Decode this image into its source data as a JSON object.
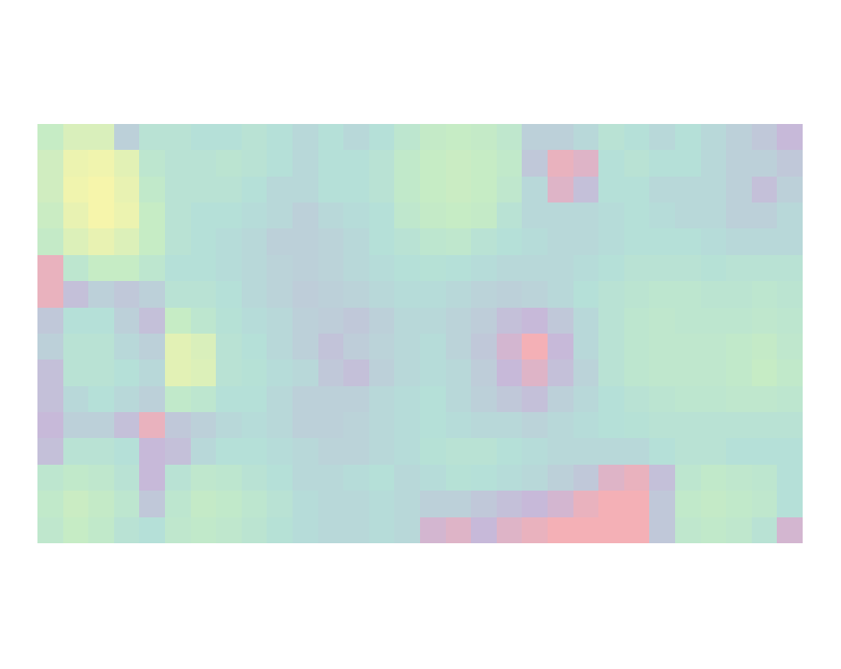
{
  "chart_data": {
    "type": "heatmap",
    "cells": [
      [
        70,
        80,
        80,
        40,
        55,
        55,
        50,
        50,
        55,
        50,
        45,
        50,
        45,
        50,
        60,
        68,
        70,
        68,
        62,
        40,
        40,
        45,
        55,
        50,
        45,
        50,
        45,
        40,
        35,
        25
      ],
      [
        75,
        90,
        92,
        85,
        60,
        55,
        55,
        58,
        55,
        50,
        45,
        50,
        50,
        55,
        65,
        70,
        72,
        70,
        65,
        35,
        10,
        15,
        50,
        55,
        50,
        50,
        45,
        40,
        40,
        35
      ],
      [
        75,
        92,
        95,
        88,
        65,
        55,
        55,
        55,
        50,
        45,
        45,
        50,
        50,
        55,
        65,
        70,
        72,
        70,
        62,
        45,
        15,
        30,
        50,
        50,
        45,
        45,
        45,
        40,
        30,
        40
      ],
      [
        72,
        88,
        95,
        90,
        70,
        55,
        50,
        50,
        48,
        45,
        40,
        45,
        48,
        50,
        62,
        68,
        70,
        68,
        55,
        45,
        45,
        45,
        48,
        50,
        48,
        45,
        45,
        40,
        40,
        45
      ],
      [
        68,
        82,
        88,
        82,
        70,
        55,
        50,
        48,
        45,
        40,
        40,
        42,
        45,
        50,
        55,
        60,
        62,
        55,
        50,
        48,
        45,
        45,
        48,
        50,
        50,
        50,
        48,
        45,
        45,
        45
      ],
      [
        10,
        60,
        70,
        70,
        60,
        50,
        50,
        48,
        45,
        42,
        40,
        42,
        45,
        48,
        50,
        52,
        50,
        48,
        45,
        45,
        45,
        48,
        50,
        55,
        55,
        55,
        52,
        55,
        55,
        55
      ],
      [
        10,
        30,
        40,
        35,
        40,
        55,
        55,
        50,
        45,
        42,
        38,
        40,
        42,
        45,
        48,
        48,
        45,
        42,
        40,
        42,
        45,
        50,
        55,
        58,
        60,
        60,
        58,
        58,
        60,
        58
      ],
      [
        35,
        50,
        50,
        40,
        30,
        70,
        60,
        52,
        48,
        45,
        40,
        38,
        35,
        40,
        45,
        45,
        42,
        38,
        30,
        25,
        35,
        45,
        55,
        60,
        62,
        60,
        60,
        60,
        62,
        60
      ],
      [
        40,
        55,
        55,
        45,
        40,
        85,
        80,
        55,
        50,
        45,
        40,
        32,
        38,
        42,
        45,
        48,
        42,
        35,
        20,
        5,
        25,
        45,
        55,
        60,
        62,
        62,
        62,
        65,
        68,
        62
      ],
      [
        30,
        55,
        55,
        50,
        45,
        85,
        82,
        55,
        52,
        48,
        45,
        35,
        30,
        40,
        45,
        48,
        45,
        38,
        25,
        15,
        30,
        42,
        55,
        60,
        62,
        62,
        62,
        65,
        70,
        65
      ],
      [
        30,
        45,
        50,
        45,
        40,
        65,
        60,
        50,
        50,
        45,
        40,
        40,
        40,
        45,
        48,
        50,
        45,
        40,
        35,
        30,
        40,
        45,
        50,
        55,
        58,
        60,
        60,
        62,
        62,
        60
      ],
      [
        25,
        40,
        40,
        30,
        10,
        35,
        40,
        45,
        48,
        45,
        40,
        40,
        42,
        45,
        48,
        50,
        48,
        45,
        45,
        42,
        45,
        48,
        50,
        52,
        55,
        55,
        55,
        55,
        55,
        55
      ],
      [
        30,
        55,
        55,
        50,
        25,
        30,
        45,
        50,
        50,
        48,
        45,
        42,
        42,
        45,
        48,
        52,
        55,
        55,
        50,
        48,
        45,
        45,
        45,
        45,
        50,
        55,
        55,
        50,
        50,
        50
      ],
      [
        60,
        65,
        62,
        55,
        25,
        55,
        62,
        60,
        55,
        50,
        45,
        45,
        48,
        50,
        45,
        48,
        52,
        50,
        48,
        45,
        40,
        35,
        15,
        10,
        30,
        60,
        65,
        62,
        60,
        50
      ],
      [
        65,
        72,
        68,
        60,
        35,
        60,
        68,
        65,
        60,
        55,
        48,
        45,
        45,
        48,
        45,
        40,
        40,
        35,
        30,
        25,
        20,
        10,
        5,
        5,
        35,
        65,
        68,
        65,
        62,
        50
      ],
      [
        62,
        70,
        65,
        55,
        50,
        62,
        65,
        62,
        58,
        52,
        48,
        45,
        45,
        48,
        45,
        20,
        15,
        25,
        15,
        10,
        5,
        5,
        5,
        5,
        35,
        62,
        65,
        62,
        55,
        20
      ]
    ],
    "color_range": [
      0,
      100
    ],
    "tick_labels": false
  }
}
